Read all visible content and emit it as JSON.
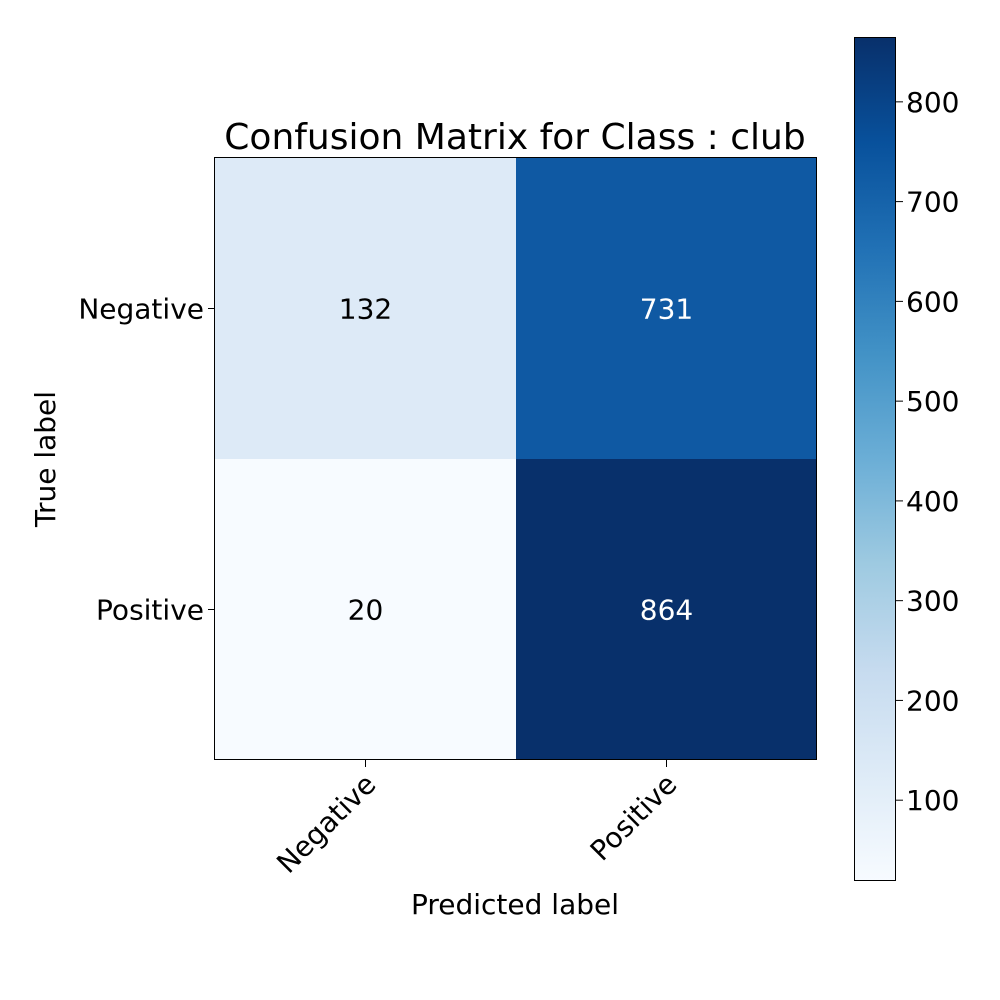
{
  "chart_data": {
    "type": "heatmap",
    "title": "Confusion Matrix for Class : club",
    "xlabel": "Predicted label",
    "ylabel": "True label",
    "x_categories": [
      "Negative",
      "Positive"
    ],
    "y_categories": [
      "Negative",
      "Positive"
    ],
    "values": [
      [
        132,
        731
      ],
      [
        20,
        864
      ]
    ],
    "colormap": "Blues",
    "color_range": [
      20,
      864
    ],
    "colorbar_ticks": [
      100,
      200,
      300,
      400,
      500,
      600,
      700,
      800
    ]
  }
}
